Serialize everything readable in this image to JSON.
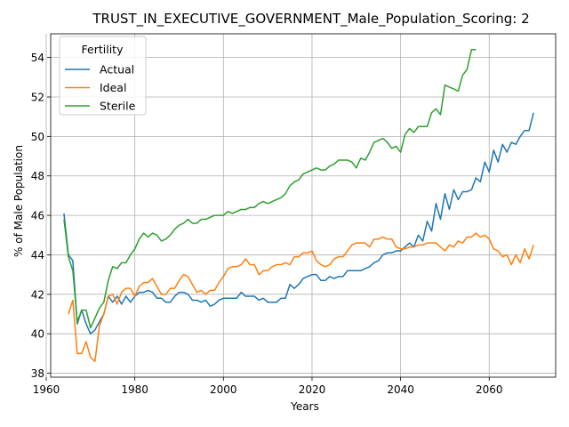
{
  "chart_data": {
    "type": "line",
    "title": "TRUST_IN_EXECUTIVE_GOVERNMENT_Male_Population_Scoring: 2",
    "xlabel": "Years",
    "ylabel": "% of Male Population",
    "xlim": [
      1961,
      2075
    ],
    "ylim": [
      37.8,
      55.2
    ],
    "xticks": [
      1960,
      1980,
      2000,
      2020,
      2040,
      2060
    ],
    "yticks": [
      38,
      40,
      42,
      44,
      46,
      48,
      50,
      52,
      54
    ],
    "grid": true,
    "legend": {
      "title": "Fertility",
      "placement": "top-left"
    },
    "series": [
      {
        "name": "Actual",
        "color": "#1f77b4",
        "x": [
          1964,
          1965,
          1966,
          1967,
          1968,
          1969,
          1970,
          1971,
          1972,
          1973,
          1974,
          1975,
          1976,
          1977,
          1978,
          1979,
          1980,
          1981,
          1982,
          1983,
          1984,
          1985,
          1986,
          1987,
          1988,
          1989,
          1990,
          1991,
          1992,
          1993,
          1994,
          1995,
          1996,
          1997,
          1998,
          1999,
          2000,
          2001,
          2002,
          2003,
          2004,
          2005,
          2006,
          2007,
          2008,
          2009,
          2010,
          2011,
          2012,
          2013,
          2014,
          2015,
          2016,
          2017,
          2018,
          2019,
          2020,
          2021,
          2022,
          2023,
          2024,
          2025,
          2026,
          2027,
          2028,
          2029,
          2030,
          2031,
          2032,
          2033,
          2034,
          2035,
          2036,
          2037,
          2038,
          2039,
          2040,
          2041,
          2042,
          2043,
          2044,
          2045,
          2046,
          2047,
          2048,
          2049,
          2050,
          2051,
          2052,
          2053,
          2054,
          2055,
          2056,
          2057,
          2058,
          2059,
          2060,
          2061,
          2062,
          2063,
          2064,
          2065,
          2066,
          2067,
          2068,
          2069,
          2070
        ],
        "values": [
          46.1,
          44.0,
          43.7,
          40.5,
          41.2,
          40.5,
          40.0,
          40.2,
          40.6,
          41.0,
          41.9,
          41.6,
          41.9,
          41.5,
          41.9,
          41.6,
          41.9,
          42.1,
          42.1,
          42.2,
          42.1,
          41.8,
          41.8,
          41.6,
          41.6,
          41.9,
          42.1,
          42.1,
          42.0,
          41.7,
          41.7,
          41.6,
          41.7,
          41.4,
          41.5,
          41.7,
          41.8,
          41.8,
          41.8,
          41.8,
          42.1,
          41.9,
          41.9,
          41.9,
          41.7,
          41.8,
          41.6,
          41.6,
          41.6,
          41.8,
          41.8,
          42.5,
          42.3,
          42.5,
          42.8,
          42.9,
          43.0,
          43.0,
          42.7,
          42.7,
          42.9,
          42.8,
          42.9,
          42.9,
          43.2,
          43.2,
          43.2,
          43.2,
          43.3,
          43.4,
          43.6,
          43.7,
          44.0,
          44.1,
          44.1,
          44.2,
          44.2,
          44.4,
          44.6,
          44.4,
          45.0,
          44.7,
          45.7,
          45.2,
          46.6,
          45.8,
          47.1,
          46.3,
          47.3,
          46.8,
          47.2,
          47.2,
          47.3,
          47.9,
          47.7,
          48.7,
          48.2,
          49.3,
          48.7,
          49.6,
          49.2,
          49.7,
          49.6,
          50.0,
          50.3,
          50.3,
          51.2
        ]
      },
      {
        "name": "Ideal",
        "color": "#ff7f0e",
        "x": [
          1965,
          1966,
          1967,
          1968,
          1969,
          1970,
          1971,
          1972,
          1973,
          1974,
          1975,
          1976,
          1977,
          1978,
          1979,
          1980,
          1981,
          1982,
          1983,
          1984,
          1985,
          1986,
          1987,
          1988,
          1989,
          1990,
          1991,
          1992,
          1993,
          1994,
          1995,
          1996,
          1997,
          1998,
          1999,
          2000,
          2001,
          2002,
          2003,
          2004,
          2005,
          2006,
          2007,
          2008,
          2009,
          2010,
          2011,
          2012,
          2013,
          2014,
          2015,
          2016,
          2017,
          2018,
          2019,
          2020,
          2021,
          2022,
          2023,
          2024,
          2025,
          2026,
          2027,
          2028,
          2029,
          2030,
          2031,
          2032,
          2033,
          2034,
          2035,
          2036,
          2037,
          2038,
          2039,
          2040,
          2041,
          2042,
          2043,
          2044,
          2045,
          2046,
          2047,
          2048,
          2049,
          2050,
          2051,
          2052,
          2053,
          2054,
          2055,
          2056,
          2057,
          2058,
          2059,
          2060,
          2061,
          2062,
          2063,
          2064,
          2065,
          2066,
          2067,
          2068,
          2069,
          2070
        ],
        "values": [
          41.0,
          41.7,
          39.0,
          39.0,
          39.6,
          38.8,
          38.6,
          40.4,
          41.0,
          41.9,
          42.0,
          41.5,
          42.1,
          42.3,
          42.3,
          41.9,
          42.4,
          42.6,
          42.6,
          42.8,
          42.4,
          42.0,
          42.0,
          42.3,
          42.3,
          42.7,
          43.0,
          42.9,
          42.5,
          42.1,
          42.2,
          42.0,
          42.2,
          42.2,
          42.6,
          42.9,
          43.3,
          43.4,
          43.4,
          43.5,
          43.8,
          43.5,
          43.5,
          43.0,
          43.2,
          43.2,
          43.4,
          43.5,
          43.5,
          43.6,
          43.5,
          43.9,
          43.9,
          44.1,
          44.1,
          44.2,
          43.7,
          43.5,
          43.4,
          43.5,
          43.8,
          43.9,
          43.9,
          44.2,
          44.5,
          44.6,
          44.6,
          44.6,
          44.4,
          44.8,
          44.8,
          44.9,
          44.8,
          44.8,
          44.4,
          44.3,
          44.3,
          44.4,
          44.4,
          44.5,
          44.5,
          44.6,
          44.6,
          44.6,
          44.4,
          44.2,
          44.5,
          44.4,
          44.7,
          44.6,
          44.9,
          44.9,
          45.1,
          44.9,
          45.0,
          44.8,
          44.3,
          44.2,
          43.9,
          44.0,
          43.5,
          44.0,
          43.6,
          44.3,
          43.8,
          44.5
        ]
      },
      {
        "name": "Sterile",
        "color": "#2ca02c",
        "x": [
          1964,
          1965,
          1966,
          1967,
          1968,
          1969,
          1970,
          1971,
          1972,
          1973,
          1974,
          1975,
          1976,
          1977,
          1978,
          1979,
          1980,
          1981,
          1982,
          1983,
          1984,
          1985,
          1986,
          1987,
          1988,
          1989,
          1990,
          1991,
          1992,
          1993,
          1994,
          1995,
          1996,
          1997,
          1998,
          1999,
          2000,
          2001,
          2002,
          2003,
          2004,
          2005,
          2006,
          2007,
          2008,
          2009,
          2010,
          2011,
          2012,
          2013,
          2014,
          2015,
          2016,
          2017,
          2018,
          2019,
          2020,
          2021,
          2022,
          2023,
          2024,
          2025,
          2026,
          2027,
          2028,
          2029,
          2030,
          2031,
          2032,
          2033,
          2034,
          2035,
          2036,
          2037,
          2038,
          2039,
          2040,
          2041,
          2042,
          2043,
          2044,
          2045,
          2046,
          2047,
          2048,
          2049,
          2050,
          2051,
          2052,
          2053,
          2054,
          2055,
          2056,
          2057
        ],
        "values": [
          45.8,
          43.9,
          43.2,
          40.6,
          41.2,
          41.2,
          40.3,
          40.8,
          41.3,
          41.6,
          42.7,
          43.4,
          43.3,
          43.6,
          43.6,
          44.0,
          44.3,
          44.8,
          45.1,
          44.9,
          45.1,
          45.0,
          44.7,
          44.8,
          45.0,
          45.3,
          45.5,
          45.6,
          45.8,
          45.6,
          45.6,
          45.8,
          45.8,
          45.9,
          46.0,
          46.0,
          46.0,
          46.2,
          46.1,
          46.2,
          46.3,
          46.3,
          46.4,
          46.4,
          46.6,
          46.7,
          46.6,
          46.7,
          46.8,
          46.9,
          47.1,
          47.5,
          47.7,
          47.8,
          48.1,
          48.2,
          48.3,
          48.4,
          48.3,
          48.3,
          48.5,
          48.6,
          48.8,
          48.8,
          48.8,
          48.7,
          48.4,
          48.9,
          48.8,
          49.2,
          49.7,
          49.8,
          49.9,
          49.7,
          49.4,
          49.5,
          49.2,
          50.1,
          50.4,
          50.2,
          50.5,
          50.5,
          50.5,
          51.2,
          51.4,
          51.1,
          52.6,
          52.5,
          52.4,
          52.3,
          53.1,
          53.4,
          54.4,
          54.4
        ]
      }
    ]
  }
}
